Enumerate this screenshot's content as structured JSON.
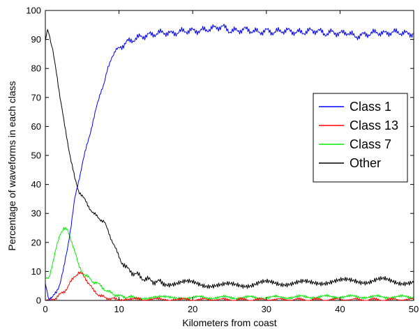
{
  "chart_data": {
    "type": "line",
    "xlabel": "Kilometers from coast",
    "ylabel": "Percentage of waveforms in each class",
    "xlim": [
      0,
      50
    ],
    "ylim": [
      0,
      100
    ],
    "x_ticks": [
      0,
      10,
      20,
      30,
      40,
      50
    ],
    "y_ticks": [
      0,
      10,
      20,
      30,
      40,
      50,
      60,
      70,
      80,
      90,
      100
    ],
    "grid": false,
    "legend_position": "right",
    "series": [
      {
        "name": "Class 1",
        "color": "#0000ff",
        "x": [
          0,
          0.5,
          1,
          1.5,
          2,
          2.5,
          3,
          3.5,
          4,
          4.5,
          5,
          5.5,
          6,
          6.5,
          7,
          7.5,
          8,
          8.5,
          9,
          9.5,
          10,
          11,
          12,
          13,
          14,
          15,
          16,
          17,
          18,
          19,
          20,
          21,
          22,
          23,
          24,
          25,
          26,
          27,
          28,
          29,
          30,
          31,
          32,
          33,
          34,
          35,
          36,
          37,
          38,
          39,
          40,
          41,
          42,
          43,
          44,
          45,
          46,
          47,
          48,
          49,
          50
        ],
        "y": [
          6,
          0.5,
          1,
          3,
          6,
          11,
          18,
          26,
          35,
          41,
          47,
          52,
          57,
          62,
          67,
          72,
          75,
          80,
          84,
          86,
          87,
          89,
          90,
          91,
          91.5,
          92,
          92.5,
          92,
          92.5,
          93,
          93,
          93,
          93.5,
          94,
          94.5,
          93,
          93,
          93.5,
          93,
          92.5,
          93,
          92.5,
          93,
          93,
          92.5,
          92.5,
          93,
          93,
          92,
          92.5,
          92,
          92.5,
          91,
          91.5,
          92,
          92.5,
          92,
          92.5,
          92.5,
          92,
          92
        ]
      },
      {
        "name": "Class 13",
        "color": "#ff0000",
        "x": [
          0,
          0.5,
          1,
          1.5,
          2,
          2.5,
          3,
          3.5,
          4,
          4.5,
          5,
          5.5,
          6,
          6.5,
          7,
          7.5,
          8,
          8.5,
          9,
          10,
          12,
          15,
          20,
          30,
          40,
          50
        ],
        "y": [
          0,
          0,
          0.5,
          1,
          2,
          3,
          4.5,
          6.5,
          8.5,
          9.5,
          9,
          7.5,
          5.5,
          3.5,
          2.5,
          1.5,
          1,
          0.8,
          0.5,
          0.4,
          0.3,
          0.3,
          0.2,
          0.2,
          0.2,
          0.2
        ]
      },
      {
        "name": "Class 7",
        "color": "#00ee00",
        "x": [
          0,
          0.5,
          1,
          1.5,
          2,
          2.5,
          3,
          3.5,
          4,
          4.5,
          5,
          5.5,
          6,
          6.5,
          7,
          7.5,
          8,
          8.5,
          9,
          9.5,
          10,
          11,
          12,
          14,
          16,
          18,
          20,
          25,
          30,
          35,
          40,
          45,
          50
        ],
        "y": [
          7,
          8,
          13,
          18,
          23,
          25,
          24,
          21,
          17,
          12,
          10,
          8.5,
          7.5,
          6.5,
          6,
          5,
          4,
          3,
          2.5,
          2,
          1.5,
          1.2,
          1,
          1,
          1,
          1,
          1,
          1,
          1,
          1.2,
          1.3,
          1.2,
          1.2
        ]
      },
      {
        "name": "Other",
        "color": "#000000",
        "x": [
          0,
          0.3,
          0.6,
          1,
          1.5,
          2,
          2.5,
          3,
          3.5,
          4,
          4.5,
          5,
          5.5,
          6,
          6.5,
          7,
          7.5,
          8,
          8.5,
          9,
          9.5,
          10,
          10.5,
          11,
          12,
          13,
          14,
          15,
          16,
          18,
          20,
          22,
          24,
          26,
          28,
          30,
          32,
          34,
          36,
          38,
          40,
          42,
          44,
          46,
          48,
          50
        ],
        "y": [
          90,
          93,
          91,
          86,
          79,
          70,
          62,
          55,
          48,
          42,
          38,
          36,
          34,
          32,
          30,
          29,
          28,
          27,
          24,
          21,
          18,
          15,
          13,
          11,
          9.5,
          8,
          7,
          6.5,
          6,
          6,
          6,
          5.5,
          5,
          5.5,
          5.5,
          6,
          6,
          6,
          6,
          6.5,
          6.5,
          7,
          6.5,
          7,
          6.5,
          6
        ]
      }
    ]
  }
}
